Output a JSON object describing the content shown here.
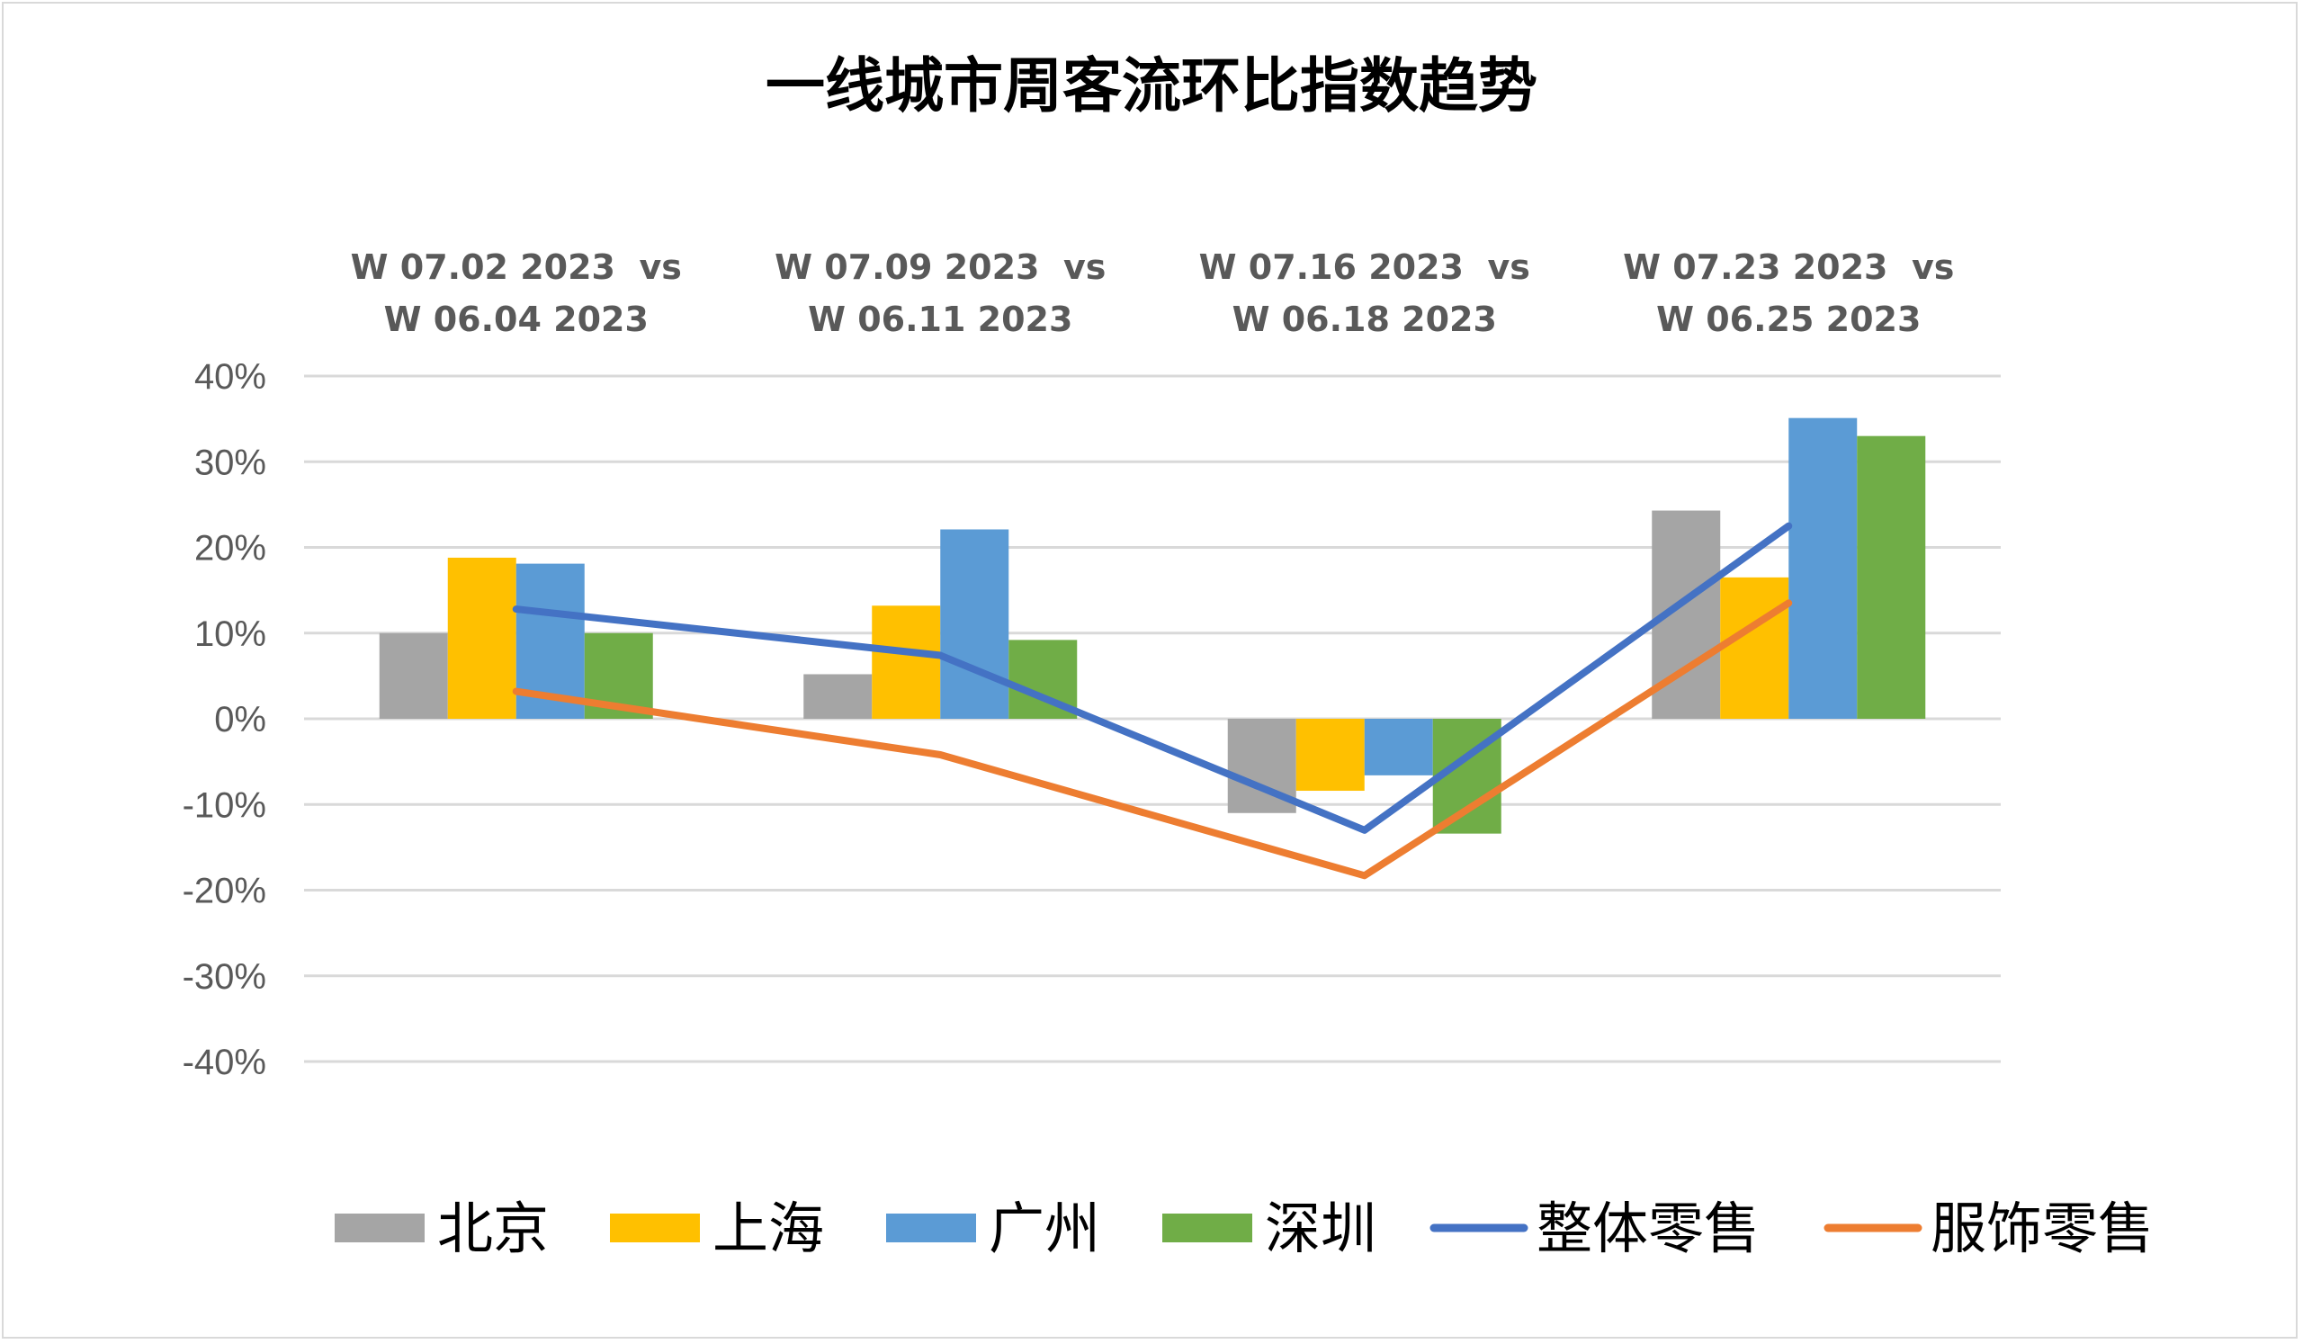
{
  "chart_data": {
    "type": "bar",
    "title": "一线城市周客流环比指数趋势",
    "xlabel": "",
    "ylabel": "",
    "ylim": [
      -40,
      40
    ],
    "yticks": [
      40,
      30,
      20,
      10,
      0,
      -10,
      -20,
      -30,
      -40
    ],
    "ytick_format": "percent",
    "grid": true,
    "legend_position": "bottom",
    "categories": [
      [
        "W 07.02 2023  vs",
        "W 06.04 2023"
      ],
      [
        "W 07.09 2023  vs",
        "W 06.11 2023"
      ],
      [
        "W 07.16 2023  vs",
        "W 06.18 2023"
      ],
      [
        "W 07.23 2023  vs",
        "W 06.25 2023"
      ]
    ],
    "category_axis_position": "top",
    "bar_series": [
      {
        "name": "北京",
        "color": "#a5a5a5",
        "values": [
          10,
          5.2,
          -11,
          24.3
        ]
      },
      {
        "name": "上海",
        "color": "#ffc000",
        "values": [
          18.8,
          13.2,
          -8.4,
          16.5
        ]
      },
      {
        "name": "广州",
        "color": "#5b9bd5",
        "values": [
          18.1,
          22.1,
          -6.6,
          35.1
        ]
      },
      {
        "name": "深圳",
        "color": "#70ad47",
        "values": [
          10,
          9.2,
          -13.4,
          33
        ]
      }
    ],
    "line_series": [
      {
        "name": "整体零售",
        "color": "#4472c4",
        "values": [
          12.8,
          7.4,
          -13,
          22.5
        ]
      },
      {
        "name": "服饰零售",
        "color": "#ed7d31",
        "values": [
          3.2,
          -4.2,
          -18.3,
          13.5
        ]
      }
    ]
  }
}
